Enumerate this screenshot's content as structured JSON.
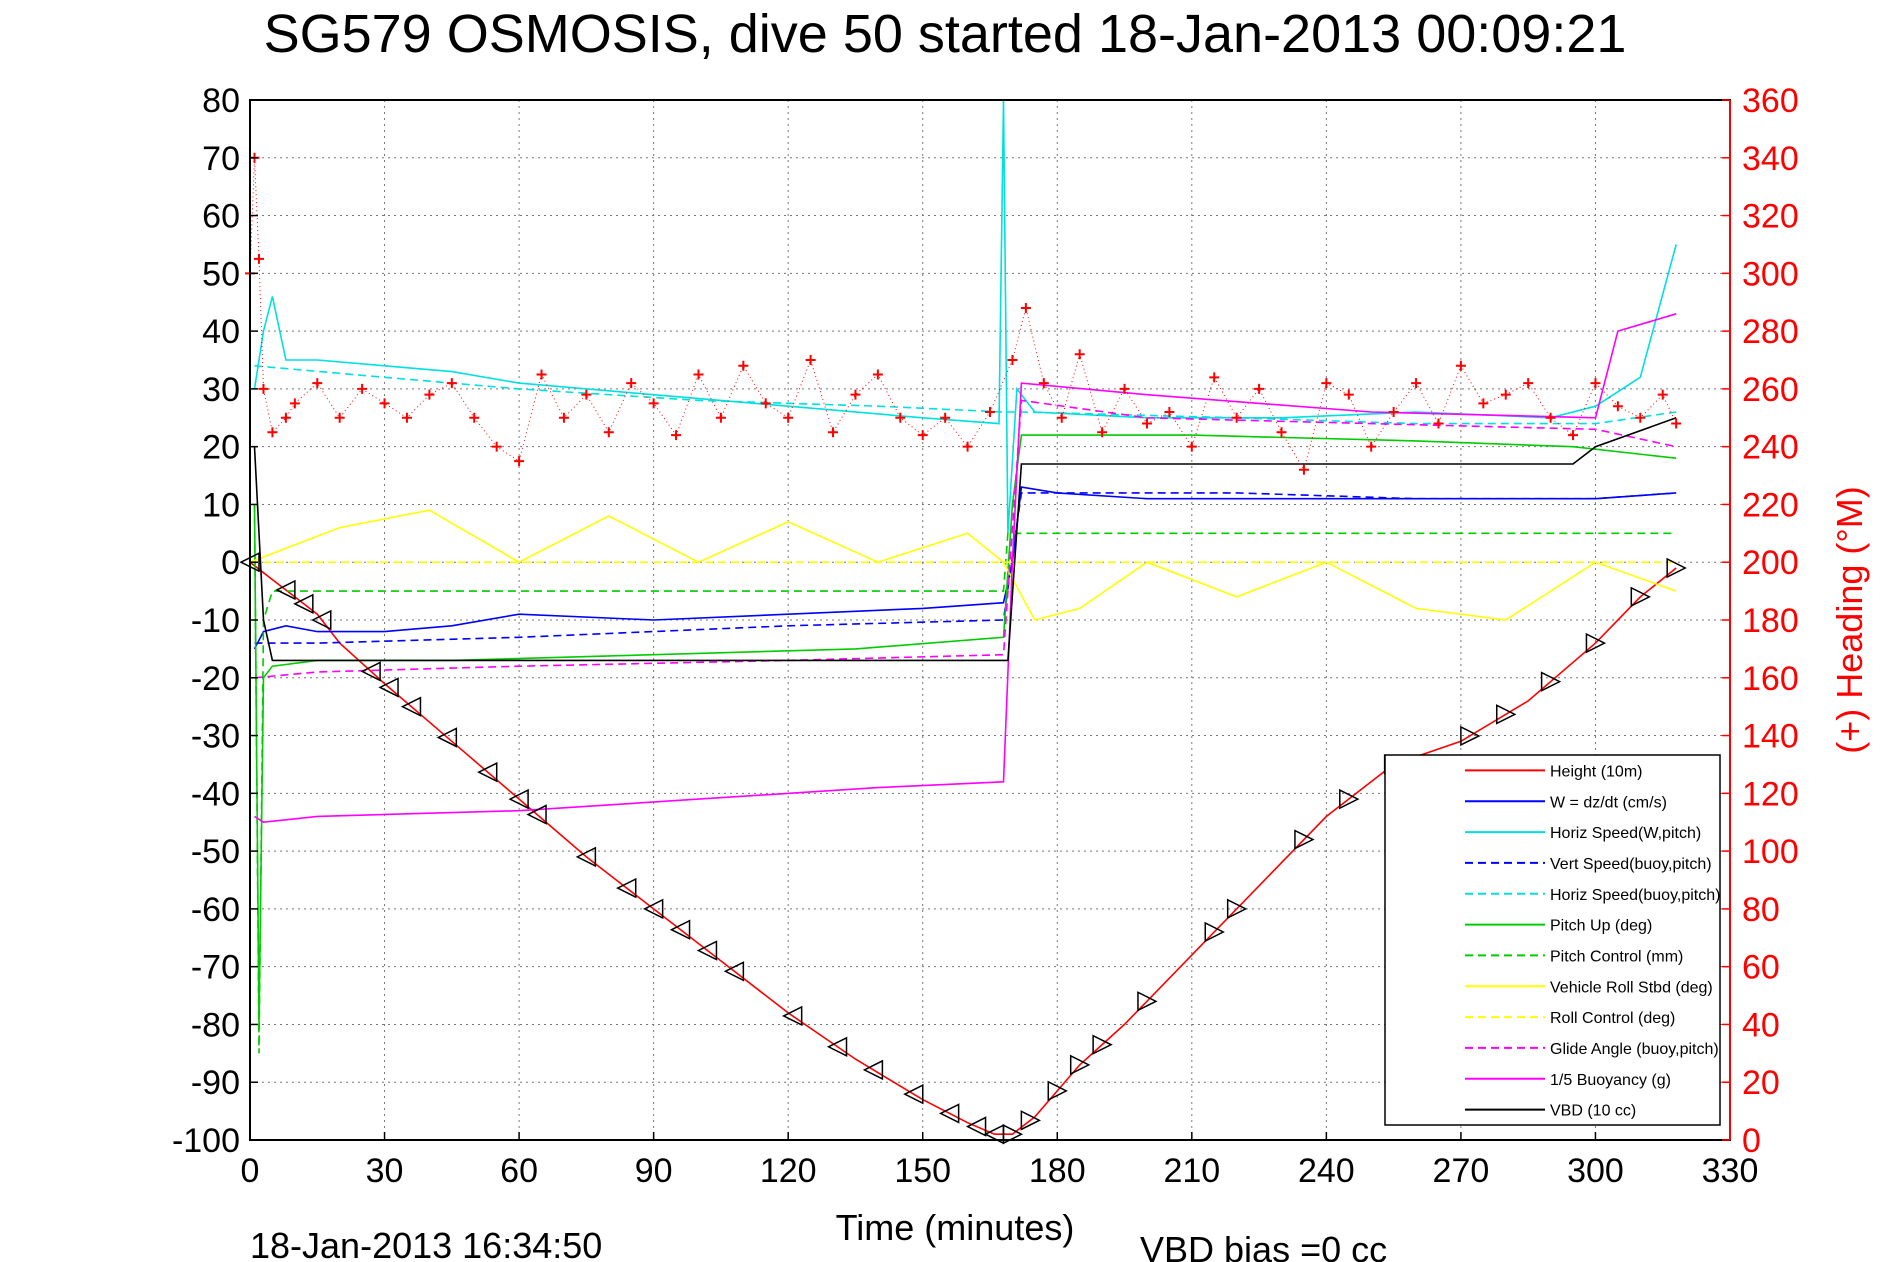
{
  "chart_data": {
    "type": "line",
    "title": "SG579 OSMOSIS, dive 50 started 18-Jan-2013 00:09:21",
    "xlabel": "Time (minutes)",
    "ylabel": "",
    "y2label": "(+) Heading (°M)",
    "xlim": [
      0,
      330
    ],
    "ylim": [
      -100,
      80
    ],
    "y2lim": [
      0,
      360
    ],
    "grid": true,
    "xticks": [
      "0",
      "30",
      "60",
      "90",
      "120",
      "150",
      "180",
      "210",
      "240",
      "270",
      "300",
      "330"
    ],
    "yticks": [
      "80",
      "70",
      "60",
      "50",
      "40",
      "30",
      "20",
      "10",
      "0",
      "-10",
      "-20",
      "-30",
      "-40",
      "-50",
      "-60",
      "-70",
      "-80",
      "-90",
      "-100"
    ],
    "y2ticks": [
      "360",
      "340",
      "320",
      "300",
      "280",
      "260",
      "240",
      "220",
      "200",
      "180",
      "160",
      "140",
      "120",
      "100",
      "80",
      "60",
      "40",
      "20",
      "0"
    ],
    "footer_left": "18-Jan-2013 16:34:50",
    "footer_right": "VBD bias =0 cc",
    "legend_position": "lower-right",
    "series": [
      {
        "name": "Height (10m)",
        "color": "#ff0000",
        "style": "solid",
        "x": [
          0,
          5,
          10,
          15,
          20,
          30,
          45,
          60,
          75,
          90,
          105,
          120,
          135,
          150,
          160,
          166,
          170,
          175,
          185,
          195,
          210,
          225,
          240,
          255,
          270,
          285,
          300,
          310,
          318
        ],
        "y": [
          0,
          -3,
          -6,
          -9,
          -14,
          -21,
          -31,
          -41,
          -51,
          -60,
          -69,
          -78,
          -86,
          -93,
          -97,
          -99,
          -99,
          -96,
          -87,
          -80,
          -68,
          -56,
          -44,
          -35,
          -31,
          -24,
          -14,
          -6,
          -1
        ]
      },
      {
        "name": "W = dz/dt (cm/s)",
        "color": "#0000ff",
        "style": "solid",
        "x": [
          1,
          3,
          8,
          15,
          30,
          45,
          60,
          90,
          120,
          150,
          168,
          170,
          172,
          180,
          200,
          230,
          260,
          290,
          300,
          318
        ],
        "y": [
          -15,
          -12,
          -11,
          -12,
          -12,
          -11,
          -9,
          -10,
          -9,
          -8,
          -7,
          0,
          13,
          12,
          11,
          11,
          11,
          11,
          11,
          12
        ]
      },
      {
        "name": "Horiz Speed(W,pitch)",
        "color": "#00e0e0",
        "style": "solid",
        "x": [
          1,
          3,
          5,
          8,
          15,
          30,
          45,
          60,
          90,
          120,
          150,
          167,
          168,
          169,
          171,
          175,
          200,
          230,
          260,
          290,
          300,
          310,
          318
        ],
        "y": [
          30,
          40,
          46,
          35,
          35,
          34,
          33,
          31,
          29,
          27,
          25,
          24,
          80,
          5,
          30,
          26,
          25,
          25,
          26,
          25,
          27,
          32,
          55
        ]
      },
      {
        "name": "Vert Speed(buoy,pitch)",
        "color": "#0000ff",
        "style": "dashed",
        "x": [
          1,
          15,
          60,
          120,
          168,
          172,
          220,
          260,
          300,
          318
        ],
        "y": [
          -14,
          -14,
          -13,
          -11,
          -10,
          12,
          12,
          11,
          11,
          12
        ]
      },
      {
        "name": "Horiz Speed(buoy,pitch)",
        "color": "#00e0e0",
        "style": "dashed",
        "x": [
          1,
          30,
          60,
          100,
          140,
          168,
          172,
          220,
          260,
          300,
          318
        ],
        "y": [
          34,
          32,
          30,
          28,
          27,
          26,
          26,
          25,
          24,
          24,
          26
        ]
      },
      {
        "name": "Pitch Up (deg)",
        "color": "#00cc00",
        "style": "solid",
        "x": [
          1,
          2,
          3,
          5,
          15,
          45,
          90,
          135,
          168,
          170,
          172,
          210,
          260,
          295,
          318
        ],
        "y": [
          10,
          -80,
          -20,
          -18,
          -17,
          -17,
          -16,
          -15,
          -13,
          10,
          22,
          22,
          21,
          20,
          18
        ]
      },
      {
        "name": "Pitch Control (mm)",
        "color": "#00cc00",
        "style": "dashed",
        "x": [
          1,
          2,
          3,
          5,
          168,
          169,
          172,
          318
        ],
        "y": [
          10,
          -85,
          -10,
          -5,
          -5,
          5,
          5,
          5
        ]
      },
      {
        "name": "Vehicle Roll Stbd (deg)",
        "color": "#ffff00",
        "style": "solid",
        "x": [
          0,
          10,
          20,
          40,
          60,
          80,
          100,
          120,
          140,
          160,
          168,
          175,
          185,
          200,
          220,
          240,
          260,
          280,
          300,
          318
        ],
        "y": [
          0,
          3,
          6,
          9,
          0,
          8,
          0,
          7,
          0,
          5,
          0,
          -10,
          -8,
          0,
          -6,
          0,
          -8,
          -10,
          0,
          -5
        ]
      },
      {
        "name": "Roll Control (deg)",
        "color": "#ffff00",
        "style": "dashed",
        "x": [
          0,
          40,
          80,
          120,
          168,
          172,
          210,
          250,
          290,
          318
        ],
        "y": [
          0,
          0,
          0,
          0,
          0,
          0,
          0,
          0,
          0,
          0
        ]
      },
      {
        "name": "Glide Angle (buoy,pitch)",
        "color": "#ff00ff",
        "style": "dashed",
        "x": [
          1,
          15,
          60,
          120,
          168,
          172,
          200,
          250,
          300,
          318
        ],
        "y": [
          -20,
          -19,
          -18,
          -17,
          -16,
          28,
          25,
          24,
          23,
          20
        ]
      },
      {
        "name": "1/5 Buoyancy (g)",
        "color": "#ff00ff",
        "style": "solid",
        "x": [
          1,
          3,
          15,
          60,
          100,
          140,
          168,
          170,
          172,
          200,
          250,
          300,
          305,
          318
        ],
        "y": [
          -44,
          -45,
          -44,
          -43,
          -41,
          -39,
          -38,
          0,
          31,
          29,
          26,
          25,
          40,
          43
        ]
      },
      {
        "name": "VBD (10 cc)",
        "color": "#000000",
        "style": "solid",
        "x": [
          1,
          3,
          5,
          168,
          169,
          172,
          295,
          300,
          318
        ],
        "y": [
          20,
          -10,
          -17,
          -17,
          -17,
          17,
          17,
          20,
          25
        ]
      }
    ],
    "heading_series": {
      "name": "Heading",
      "color": "#ff0000",
      "marker": "+",
      "axis": "right",
      "x": [
        0,
        1,
        2,
        3,
        5,
        8,
        10,
        15,
        20,
        25,
        30,
        35,
        40,
        45,
        50,
        55,
        60,
        65,
        70,
        75,
        80,
        85,
        90,
        95,
        100,
        105,
        110,
        115,
        120,
        125,
        130,
        135,
        140,
        145,
        150,
        155,
        160,
        165,
        170,
        173,
        177,
        181,
        185,
        190,
        195,
        200,
        205,
        210,
        215,
        220,
        225,
        230,
        235,
        240,
        245,
        250,
        255,
        260,
        265,
        270,
        275,
        280,
        285,
        290,
        295,
        300,
        305,
        310,
        315,
        318
      ],
      "y": [
        300,
        340,
        305,
        260,
        245,
        250,
        255,
        262,
        250,
        260,
        255,
        250,
        258,
        262,
        250,
        240,
        235,
        265,
        250,
        258,
        245,
        262,
        255,
        244,
        265,
        250,
        268,
        255,
        250,
        270,
        245,
        258,
        265,
        250,
        244,
        250,
        240,
        252,
        270,
        288,
        262,
        250,
        272,
        245,
        260,
        248,
        252,
        240,
        264,
        250,
        260,
        245,
        232,
        262,
        258,
        240,
        252,
        262,
        248,
        268,
        255,
        258,
        262,
        250,
        244,
        262,
        254,
        250,
        258,
        248
      ]
    },
    "triangle_markers": {
      "x": [
        0,
        8,
        12,
        16,
        27,
        31,
        36,
        44,
        53,
        60,
        64,
        75,
        84,
        90,
        96,
        102,
        108,
        121,
        131,
        139,
        148,
        156,
        162,
        166,
        170,
        174,
        180,
        185,
        190,
        200,
        215,
        220,
        235,
        245,
        255,
        272,
        280,
        290,
        300,
        310,
        318
      ]
    }
  }
}
